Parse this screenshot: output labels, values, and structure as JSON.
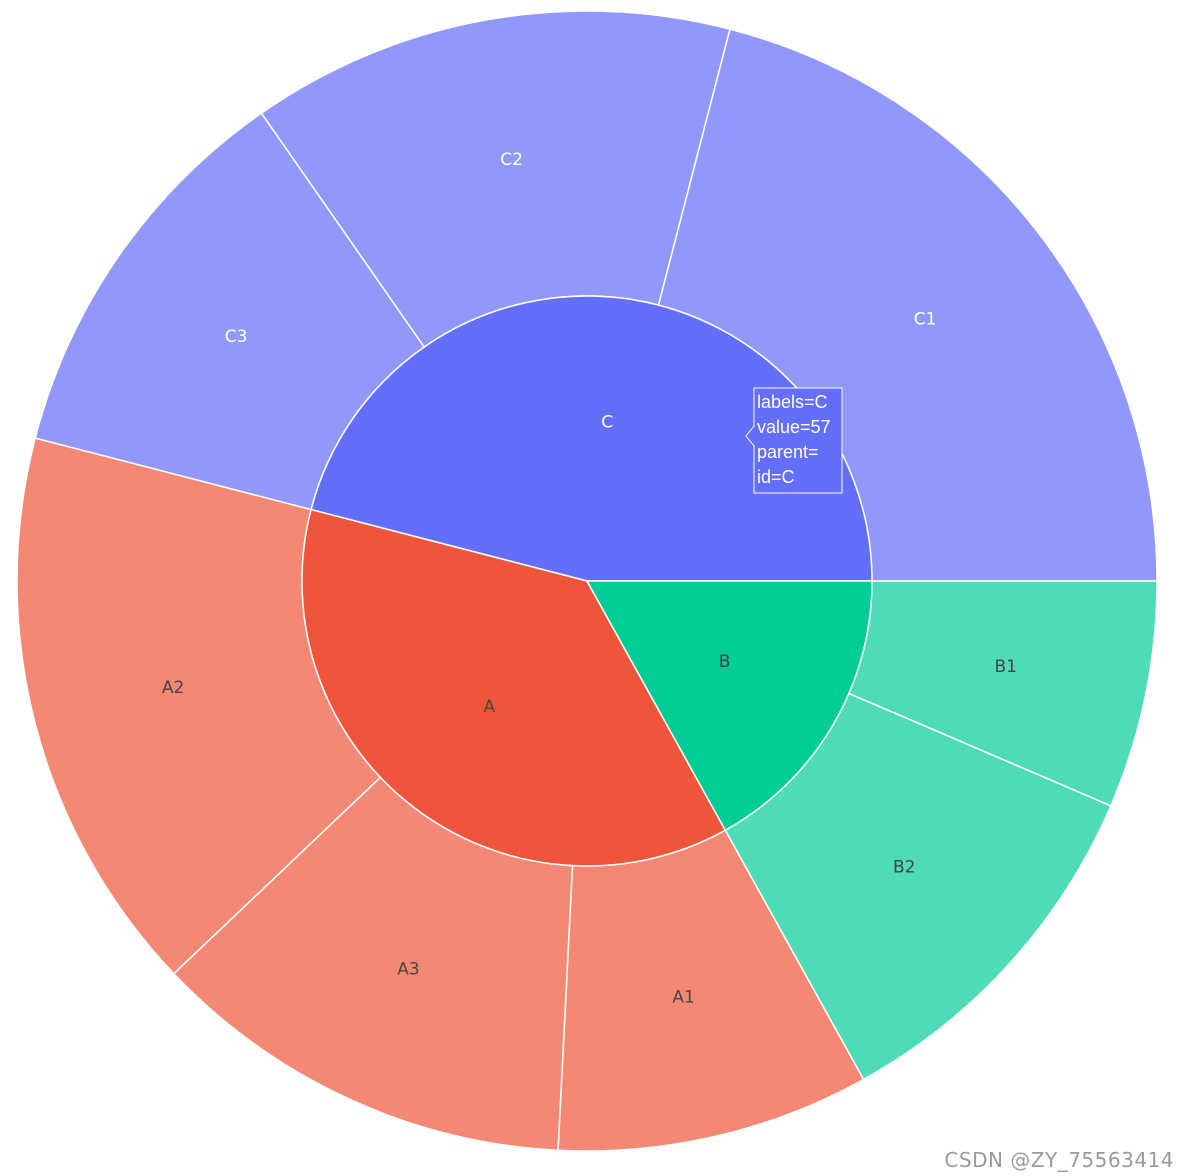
{
  "chart_data": {
    "type": "sunburst",
    "nodes": [
      {
        "id": "C",
        "label": "C",
        "parent": "",
        "value": 57,
        "color": "#636EFA",
        "text_color": "#ffffff"
      },
      {
        "id": "A",
        "label": "A",
        "parent": "",
        "value": 46,
        "color": "#EF553B",
        "text_color": "#444444"
      },
      {
        "id": "B",
        "label": "B",
        "parent": "",
        "value": 21,
        "color": "#00CC96",
        "text_color": "#444444"
      },
      {
        "id": "C1",
        "label": "C1",
        "parent": "C",
        "value": 26,
        "color": "#9198F9",
        "text_color": "#ffffff"
      },
      {
        "id": "C2",
        "label": "C2",
        "parent": "C",
        "value": 17,
        "color": "#9198F9",
        "text_color": "#ffffff"
      },
      {
        "id": "C3",
        "label": "C3",
        "parent": "C",
        "value": 14,
        "color": "#9198F9",
        "text_color": "#ffffff"
      },
      {
        "id": "A2",
        "label": "A2",
        "parent": "A",
        "value": 20,
        "color": "#F48875",
        "text_color": "#444444"
      },
      {
        "id": "A3",
        "label": "A3",
        "parent": "A",
        "value": 15,
        "color": "#F48875",
        "text_color": "#444444"
      },
      {
        "id": "A1",
        "label": "A1",
        "parent": "A",
        "value": 11,
        "color": "#F48875",
        "text_color": "#444444"
      },
      {
        "id": "B2",
        "label": "B2",
        "parent": "B",
        "value": 13,
        "color": "#4FDBB7",
        "text_color": "#444444"
      },
      {
        "id": "B1",
        "label": "B1",
        "parent": "B",
        "value": 8,
        "color": "#4FDBB7",
        "text_color": "#444444"
      }
    ],
    "hover": {
      "target": "C",
      "lines": [
        "labels=C",
        "value=57",
        "parent=",
        "id=C"
      ]
    }
  },
  "watermark": "CSDN @ZY_75563414"
}
